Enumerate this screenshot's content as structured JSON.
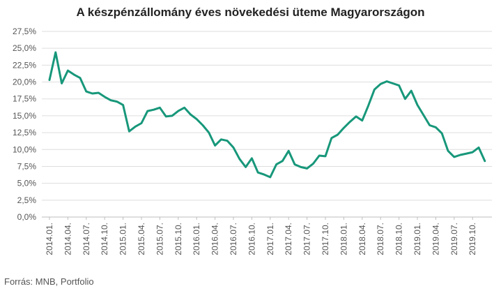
{
  "chart_data": {
    "type": "line",
    "title": "A készpénzállomány éves növekedési üteme Magyarországon",
    "source": "Forrás: MNB, Portfolio",
    "ylim": [
      0,
      27.5
    ],
    "yticks": [
      "0,0%",
      "2,5%",
      "5,0%",
      "7,5%",
      "10,0%",
      "12,5%",
      "15,0%",
      "17,5%",
      "20,0%",
      "22,5%",
      "25,0%",
      "27,5%"
    ],
    "xticks": [
      "2014.01.",
      "2014.04.",
      "2014.07.",
      "2014.10.",
      "2015.01.",
      "2015.04.",
      "2015.07.",
      "2015.10.",
      "2016.01.",
      "2016.04.",
      "2016.07.",
      "2016.10.",
      "2017.01.",
      "2017.04.",
      "2017.07.",
      "2017.10.",
      "2018.01.",
      "2018.04.",
      "2018.07.",
      "2018.10.",
      "2019.01.",
      "2019.04.",
      "2019.07.",
      "2019.10."
    ],
    "grid": true,
    "color": "#17977a",
    "series": [
      {
        "values": [
          20.3,
          24.4,
          19.8,
          21.7,
          21.1,
          20.6,
          18.6,
          18.3,
          18.4,
          17.8,
          17.3,
          17.1,
          16.6,
          12.7,
          13.4,
          13.9,
          15.7,
          15.9,
          16.2,
          14.9,
          15.0,
          15.7,
          16.2,
          15.2,
          14.5,
          13.6,
          12.5,
          10.6,
          11.5,
          11.3,
          10.3,
          8.6,
          7.4,
          8.7,
          6.6,
          6.3,
          5.9,
          7.8,
          8.3,
          9.8,
          7.8,
          7.4,
          7.2,
          7.9,
          9.1,
          9.0,
          11.7,
          12.2,
          13.2,
          14.1,
          14.9,
          14.3,
          16.5,
          18.9,
          19.7,
          20.1,
          19.8,
          19.5,
          17.5,
          18.7,
          16.6,
          15.1,
          13.6,
          13.3,
          12.4,
          9.8,
          8.9,
          9.2,
          9.4,
          9.6,
          10.3,
          8.3
        ]
      }
    ]
  }
}
